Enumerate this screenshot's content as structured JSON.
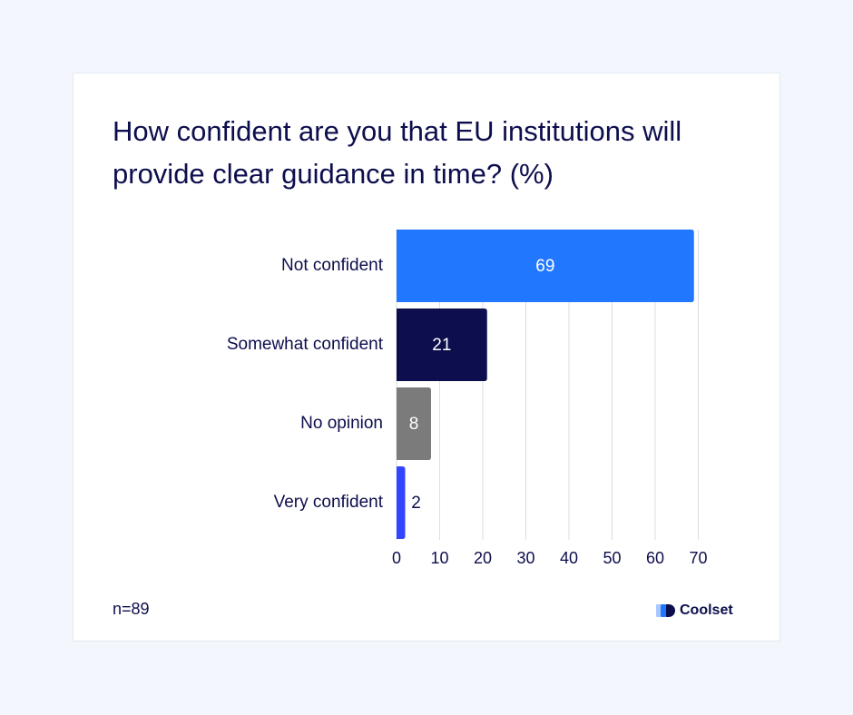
{
  "chart_data": {
    "type": "bar",
    "orientation": "horizontal",
    "title": "How confident are you that EU institutions will provide clear guidance in time? (%)",
    "categories": [
      "Not confident",
      "Somewhat confident",
      "No opinion",
      "Very confident"
    ],
    "values": [
      69,
      21,
      8,
      2
    ],
    "colors": [
      "#2277ff",
      "#0d0e4d",
      "#7b7b7b",
      "#3344ff"
    ],
    "value_label_colors": [
      "#ffffff",
      "#ffffff",
      "#ffffff",
      "#0d0e4d"
    ],
    "xlim": [
      0,
      70
    ],
    "xticks": [
      0,
      10,
      20,
      30,
      40,
      50,
      60,
      70
    ],
    "grid": "vertical",
    "xlabel": "",
    "ylabel": ""
  },
  "footnote": "n=89",
  "brand": {
    "name": "Coolset",
    "logo_icon": "coolset-logo-icon",
    "logo_colors": [
      "#a9c8ff",
      "#2277ff",
      "#0d0e4d"
    ]
  }
}
